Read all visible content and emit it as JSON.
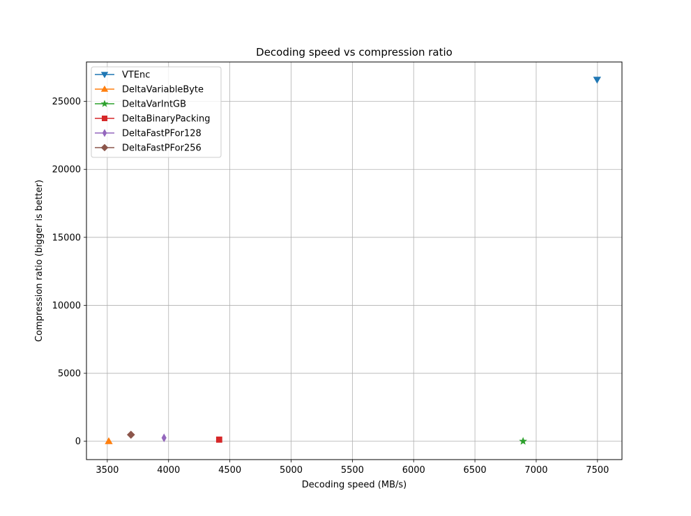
{
  "chart_data": {
    "type": "scatter",
    "title": "Decoding speed vs compression ratio",
    "xlabel": "Decoding speed (MB/s)",
    "ylabel": "Compression ratio (bigger is better)",
    "xlim": [
      3330,
      7700
    ],
    "ylim": [
      -1350,
      27900
    ],
    "xticks": [
      3500,
      4000,
      4500,
      5000,
      5500,
      6000,
      6500,
      7000,
      7500
    ],
    "yticks": [
      0,
      5000,
      10000,
      15000,
      20000,
      25000
    ],
    "grid": true,
    "legend_position": "top-left",
    "series": [
      {
        "name": "VTEnc",
        "color": "#1f77b4",
        "marker": "triangle-down",
        "x": 7497,
        "y": 26600
      },
      {
        "name": "DeltaVariableByte",
        "color": "#ff7f0e",
        "marker": "triangle-up",
        "x": 3512,
        "y": 0
      },
      {
        "name": "DeltaVarIntGB",
        "color": "#2ca02c",
        "marker": "star",
        "x": 6893,
        "y": 0
      },
      {
        "name": "DeltaBinaryPacking",
        "color": "#d62728",
        "marker": "square",
        "x": 4413,
        "y": 120
      },
      {
        "name": "DeltaFastPFor128",
        "color": "#9467bd",
        "marker": "thin-diamond",
        "x": 3963,
        "y": 250
      },
      {
        "name": "DeltaFastPFor256",
        "color": "#8c564b",
        "marker": "diamond",
        "x": 3693,
        "y": 480
      }
    ]
  }
}
